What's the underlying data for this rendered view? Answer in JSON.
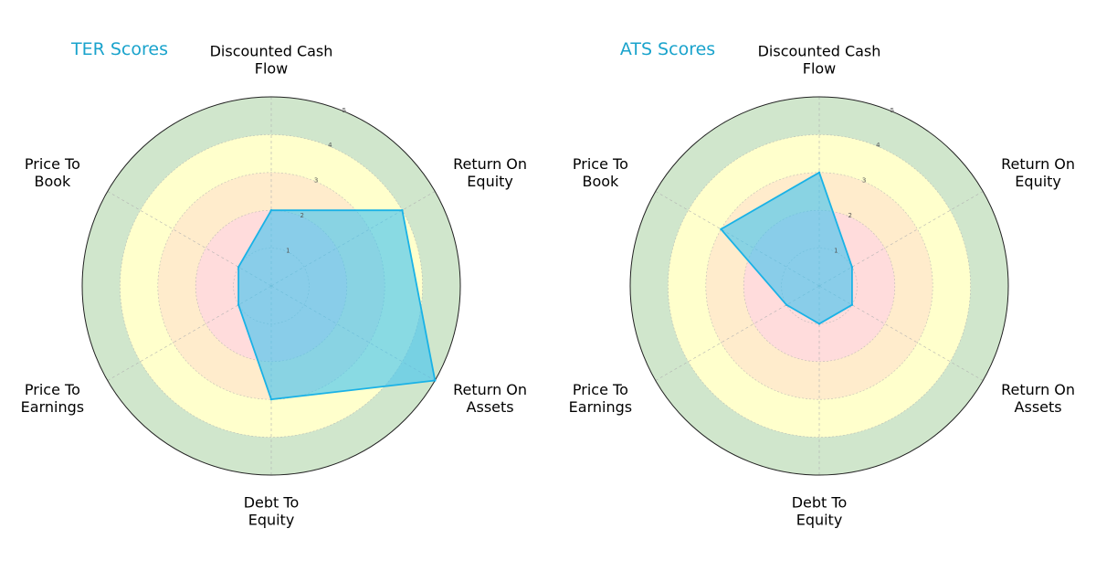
{
  "figure": {
    "background": "#ffffff",
    "band_colors": [
      "#d0e6cc",
      "#ffffcc",
      "#ffeccc",
      "#ffdcdc"
    ],
    "title_color": "#1aa3cc",
    "fill_color": "#40c4f0",
    "line_color": "#1ab2e6"
  },
  "chart_data": [
    {
      "type": "radar",
      "title": "TER Scores",
      "categories": [
        [
          "Discounted Cash",
          "Flow"
        ],
        [
          "Return On",
          "Equity"
        ],
        [
          "Return On",
          "Assets"
        ],
        [
          "Debt To",
          "Equity"
        ],
        [
          "Price To",
          "Earnings"
        ],
        [
          "Price To",
          "Book"
        ]
      ],
      "values": [
        2,
        4,
        5,
        3,
        1,
        1
      ],
      "rlim": [
        0,
        5
      ],
      "rticks": [
        "1",
        "2",
        "3",
        "4",
        "5"
      ],
      "grid": true
    },
    {
      "type": "radar",
      "title": "ATS Scores",
      "categories": [
        [
          "Discounted Cash",
          "Flow"
        ],
        [
          "Return On",
          "Equity"
        ],
        [
          "Return On",
          "Assets"
        ],
        [
          "Debt To",
          "Equity"
        ],
        [
          "Price To",
          "Earnings"
        ],
        [
          "Price To",
          "Book"
        ]
      ],
      "values": [
        3,
        1,
        1,
        1,
        1,
        3
      ],
      "rlim": [
        0,
        5
      ],
      "rticks": [
        "1",
        "2",
        "3",
        "4",
        "5"
      ],
      "grid": true
    }
  ]
}
